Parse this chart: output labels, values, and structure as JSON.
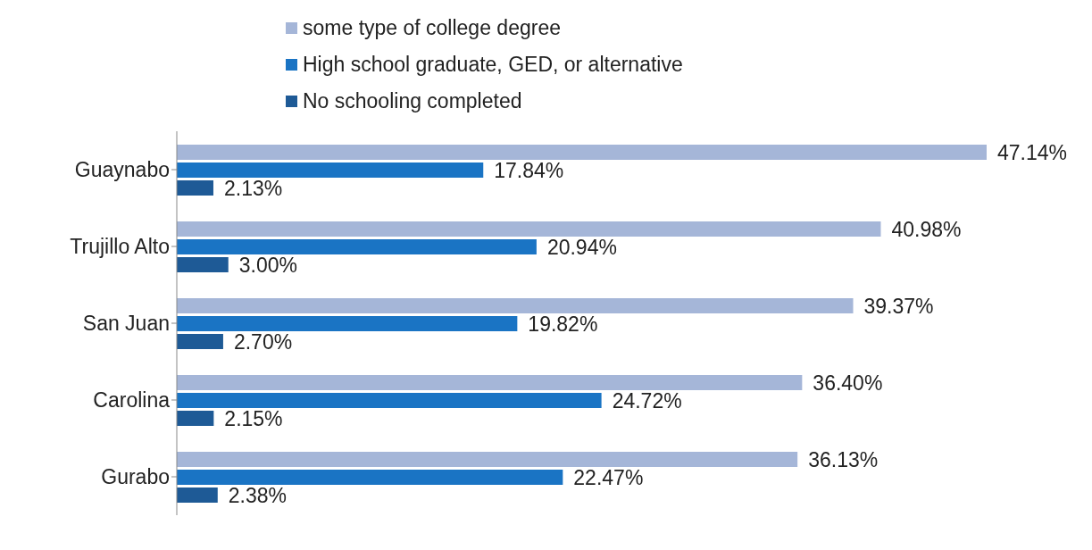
{
  "chart_data": {
    "type": "bar",
    "orientation": "horizontal",
    "categories": [
      "Guaynabo",
      "Trujillo Alto",
      "San Juan",
      "Carolina",
      "Gurabo"
    ],
    "series": [
      {
        "name": "some type of college degree",
        "color": "#a5b6d8",
        "values": [
          47.14,
          40.98,
          39.37,
          36.4,
          36.13
        ],
        "value_labels": [
          "47.14%",
          "40.98%",
          "39.37%",
          "36.40%",
          "36.13%"
        ]
      },
      {
        "name": "High school graduate, GED, or alternative",
        "color": "#1a74c4",
        "values": [
          17.84,
          20.94,
          19.82,
          24.72,
          22.47
        ],
        "value_labels": [
          "17.84%",
          "20.94%",
          "19.82%",
          "24.72%",
          "22.47%"
        ]
      },
      {
        "name": "No schooling completed",
        "color": "#1e5a96",
        "values": [
          2.13,
          3.0,
          2.7,
          2.15,
          2.38
        ],
        "value_labels": [
          "2.13%",
          "3.00%",
          "2.70%",
          "2.15%",
          "2.38%"
        ]
      }
    ],
    "legend": "top"
  }
}
